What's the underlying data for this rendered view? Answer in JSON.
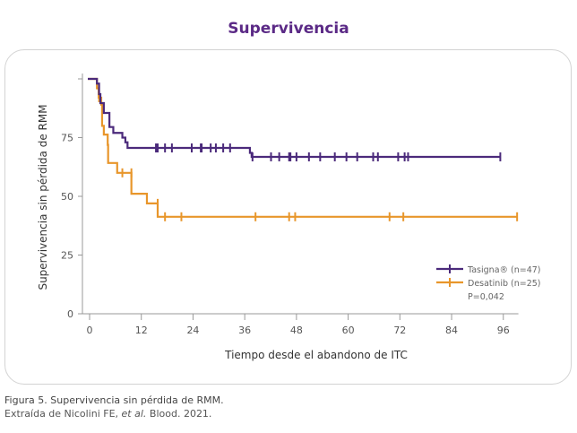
{
  "chart_data": {
    "type": "line",
    "title": "Supervivencia",
    "xlabel": "Tiempo desde el abandono de ITC",
    "ylabel": "Supervivencia sin pérdida de RMM",
    "xlim": [
      0,
      100
    ],
    "ylim": [
      0,
      100
    ],
    "xticks": [
      0,
      12,
      24,
      36,
      48,
      60,
      72,
      84,
      96
    ],
    "yticks": [
      0,
      25,
      50,
      75,
      100
    ],
    "ytick_labels": [
      "0",
      "25",
      "50",
      "75",
      ""
    ],
    "grid": false,
    "legend_position": "bottom-right",
    "annotation": "P=0,042",
    "series": [
      {
        "name": "Tasigna® (n=47)",
        "color": "#4b2a7b",
        "steps": [
          [
            0,
            100
          ],
          [
            1.7,
            98
          ],
          [
            2.2,
            93.5
          ],
          [
            2.5,
            89.7
          ],
          [
            3.3,
            85.5
          ],
          [
            4.6,
            79.5
          ],
          [
            5.5,
            77
          ],
          [
            7.6,
            75
          ],
          [
            8.3,
            73
          ],
          [
            8.8,
            70.6
          ],
          [
            37.2,
            68.5
          ],
          [
            37.6,
            66.8
          ],
          [
            95.3,
            66.8
          ]
        ],
        "censored": [
          [
            15.4,
            70.6
          ],
          [
            15.8,
            70.6
          ],
          [
            17.5,
            70.6
          ],
          [
            19.1,
            70.6
          ],
          [
            23.7,
            70.6
          ],
          [
            25.8,
            70.6
          ],
          [
            26,
            70.6
          ],
          [
            28.1,
            70.6
          ],
          [
            29.3,
            70.6
          ],
          [
            31,
            70.6
          ],
          [
            32.6,
            70.6
          ],
          [
            37.8,
            66.8
          ],
          [
            42.1,
            66.8
          ],
          [
            44,
            66.8
          ],
          [
            46.3,
            66.8
          ],
          [
            46.6,
            66.8
          ],
          [
            48,
            66.8
          ],
          [
            50.9,
            66.8
          ],
          [
            53.5,
            66.8
          ],
          [
            56.9,
            66.8
          ],
          [
            59.6,
            66.8
          ],
          [
            62.1,
            66.8
          ],
          [
            65.8,
            66.8
          ],
          [
            66.9,
            66.8
          ],
          [
            71.6,
            66.8
          ],
          [
            73.1,
            66.8
          ],
          [
            73.9,
            66.8
          ],
          [
            95.3,
            66.8
          ]
        ]
      },
      {
        "name": "Desatinib (n=25)",
        "color": "#e8962b",
        "steps": [
          [
            0,
            100
          ],
          [
            1.7,
            96
          ],
          [
            2.1,
            92
          ],
          [
            2.7,
            89
          ],
          [
            2.9,
            80
          ],
          [
            3.3,
            76.3
          ],
          [
            4.2,
            71.9
          ],
          [
            4.3,
            64.2
          ],
          [
            6.4,
            60
          ],
          [
            9.7,
            51.1
          ],
          [
            13.3,
            47
          ],
          [
            15.8,
            41.3
          ],
          [
            99.2,
            41.3
          ]
        ],
        "censored": [
          [
            2.2,
            92
          ],
          [
            7.6,
            60
          ],
          [
            9.7,
            60
          ],
          [
            15.8,
            47
          ],
          [
            17.5,
            41.3
          ],
          [
            21.3,
            41.3
          ],
          [
            38.5,
            41.3
          ],
          [
            46.3,
            41.3
          ],
          [
            47.7,
            41.3
          ],
          [
            69.6,
            41.3
          ],
          [
            72.8,
            41.3
          ],
          [
            99.2,
            41.3
          ]
        ]
      }
    ]
  },
  "caption": {
    "figure": "Figura 5. Supervivencia sin pérdida de RMM.",
    "source_prefix": "Extraída de Nicolini FE, ",
    "source_italic": "et al.",
    "source_suffix": " Blood. 2021."
  }
}
